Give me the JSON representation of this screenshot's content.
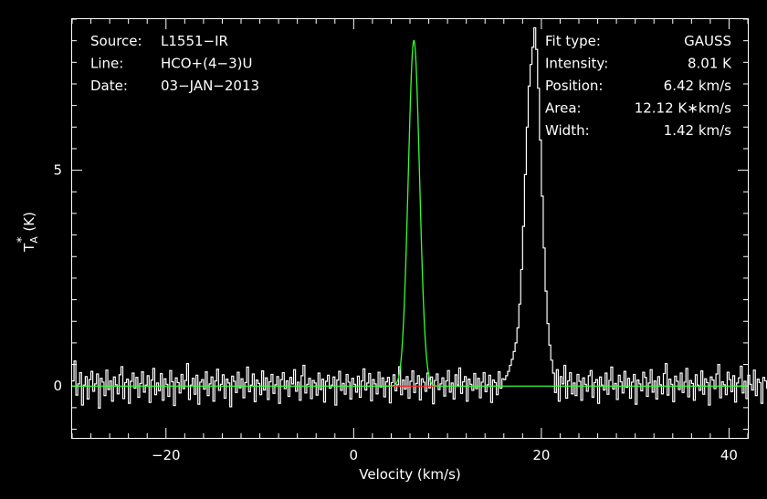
{
  "info_left": [
    {
      "label": "Source:",
      "value": "L1551−IR"
    },
    {
      "label": "Line:",
      "value": "HCO+(4−3)U"
    },
    {
      "label": "Date:",
      "value": "03−JAN−2013"
    }
  ],
  "info_right": [
    {
      "label": "Fit type:",
      "value": "GAUSS"
    },
    {
      "label": "Intensity:",
      "value": "8.01 K"
    },
    {
      "label": "Position:",
      "value": "6.42 km/s"
    },
    {
      "label": "Area:",
      "value": "12.12 K∗km/s"
    },
    {
      "label": "Width:",
      "value": "1.42 km/s"
    }
  ],
  "colors": {
    "background": "#000000",
    "spectrum": "#ffffff",
    "fit": "#33ff33",
    "baseline": "#ff2222",
    "axes": "#ffffff"
  },
  "chart_data": {
    "type": "line",
    "xlabel": "Velocity (km/s)",
    "ylabel": "T",
    "ylabel_sup": "*",
    "ylabel_sub": "A",
    "ylabel_unit": "(K)",
    "xlim": [
      -30,
      42
    ],
    "ylim": [
      -1.2,
      8.5
    ],
    "xticks": [
      -20,
      0,
      20,
      40
    ],
    "yticks": [
      0,
      5
    ],
    "xtick_labels": [
      "−20",
      "0",
      "20",
      "40"
    ],
    "ytick_labels": [
      "0",
      "5"
    ],
    "grid": false,
    "series": [
      {
        "role": "spectrum",
        "render": "steps",
        "x_start": -30,
        "x_step": 0.2,
        "values": [
          0.12,
          0.58,
          -0.21,
          0.05,
          0.31,
          -0.44,
          0.02,
          0.22,
          -0.3,
          0.15,
          0.34,
          -0.12,
          0.05,
          0.28,
          -0.51,
          0.18,
          0.09,
          -0.22,
          0.37,
          -0.08,
          0.12,
          -0.35,
          0.21,
          0.03,
          -0.18,
          0.26,
          0.45,
          -0.29,
          0.08,
          0.16,
          -0.4,
          0.11,
          0.3,
          -0.05,
          0.2,
          -0.26,
          0.06,
          0.33,
          -0.14,
          0.02,
          0.24,
          -0.38,
          0.14,
          0.41,
          -0.2,
          0.07,
          -0.11,
          0.29,
          -0.33,
          0.17,
          0.04,
          -0.24,
          0.36,
          0.1,
          -0.45,
          0.19,
          0.08,
          -0.16,
          0.27,
          -0.06,
          0.13,
          0.52,
          -0.31,
          0.02,
          0.18,
          -0.19,
          0.25,
          -0.42,
          0.09,
          0.15,
          -0.07,
          0.33,
          -0.22,
          0.05,
          0.21,
          -0.35,
          0.12,
          0.39,
          -0.1,
          0.04,
          0.26,
          -0.28,
          0.16,
          0.07,
          -0.48,
          0.23,
          0.11,
          -0.15,
          0.32,
          -0.04,
          0.17,
          -0.27,
          0.08,
          0.44,
          -0.13,
          0.02,
          0.28,
          -0.36,
          0.14,
          0.06,
          -0.2,
          0.35,
          -0.09,
          0.19,
          -0.31,
          0.1,
          0.27,
          -0.17,
          0.03,
          0.22,
          -0.4,
          0.15,
          0.31,
          -0.06,
          0.12,
          -0.24,
          0.2,
          0.05,
          0.38,
          -0.12,
          0.09,
          -0.33,
          0.24,
          0.48,
          -0.16,
          0.04,
          0.18,
          -0.29,
          0.13,
          0.07,
          -0.21,
          0.3,
          -0.08,
          0.16,
          -0.37,
          0.11,
          0.25,
          -0.05,
          0.02,
          0.21,
          -0.44,
          0.14,
          0.34,
          -0.1,
          0.06,
          -0.19,
          0.27,
          0.09,
          -0.3,
          0.18,
          0.04,
          -0.14,
          0.23,
          -0.26,
          0.12,
          0.4,
          -0.09,
          0.07,
          0.29,
          -0.34,
          0.15,
          0.05,
          -0.18,
          0.32,
          -0.02,
          0.19,
          -0.25,
          0.1,
          0.2,
          -0.39,
          0.08,
          0.26,
          -0.11,
          0.03,
          0.45,
          -0.2,
          0.14,
          -0.07,
          0.22,
          -0.28,
          0.11,
          0.35,
          -0.15,
          0.06,
          0.24,
          -0.32,
          0.17,
          0.09,
          -0.12,
          0.3,
          -0.04,
          0.21,
          -0.41,
          0.13,
          0.28,
          -0.08,
          0.05,
          0.19,
          -0.23,
          0.12,
          0.36,
          -0.14,
          0.07,
          -0.3,
          0.26,
          0.02,
          0.42,
          -0.17,
          0.1,
          0.22,
          -0.35,
          0.16,
          0.04,
          -0.1,
          0.29,
          -0.06,
          0.18,
          -0.27,
          0.09,
          0.31,
          -0.13,
          0.03,
          0.25,
          -0.38,
          0.14,
          0.08,
          -0.2,
          0.33,
          -0.05,
          0.17,
          0.15,
          0.24,
          0.34,
          0.48,
          0.62,
          0.8,
          1.0,
          1.35,
          1.9,
          2.7,
          3.7,
          4.9,
          6.0,
          6.95,
          7.45,
          7.85,
          8.3,
          7.8,
          6.9,
          5.7,
          4.4,
          3.2,
          2.2,
          1.45,
          0.95,
          0.6,
          0.3,
          -0.15,
          0.38,
          -0.35,
          0.22,
          0.05,
          0.48,
          -0.28,
          0.12,
          0.31,
          -0.18,
          0.07,
          -0.22,
          0.27,
          0.11,
          -0.33,
          0.19,
          0.04,
          -0.12,
          0.24,
          0.36,
          -0.26,
          0.08,
          0.15,
          -0.4,
          0.21,
          0.02,
          -0.09,
          0.3,
          -0.19,
          0.13,
          0.44,
          -0.07,
          0.06,
          -0.31,
          0.25,
          0.1,
          -0.16,
          0.34,
          -0.03,
          0.18,
          -0.28,
          0.09,
          0.27,
          -0.42,
          0.14,
          0.05,
          -0.11,
          0.32,
          0.2,
          -0.24,
          0.07,
          0.38,
          -0.14,
          0.12,
          -0.3,
          0.22,
          0.03,
          -0.18,
          0.29,
          0.52,
          -0.21,
          0.16,
          0.04,
          -0.36,
          0.23,
          0.11,
          -0.08,
          0.3,
          -0.15,
          0.09,
          0.41,
          -0.25,
          0.13,
          0.06,
          -0.33,
          0.26,
          0.02,
          -0.1,
          0.35,
          -0.19,
          0.17,
          0.08,
          -0.44,
          0.21,
          0.14,
          -0.06,
          0.28,
          0.5,
          -0.27,
          0.1,
          0.03,
          -0.2,
          0.32,
          0.15,
          -0.13,
          0.24,
          -0.37,
          0.07,
          0.19,
          0.46,
          -0.16,
          0.11,
          -0.29,
          0.25,
          0.04,
          -0.09,
          0.37,
          -0.22,
          0.16,
          0.08,
          -0.4,
          0.2,
          0.12,
          -0.05,
          0.31,
          -0.18,
          0.09,
          0.68,
          -0.3,
          0.14,
          0.05,
          -0.24,
          0.28,
          0.18,
          -0.12,
          0.33,
          -0.35,
          0.1,
          0.22,
          0.4,
          -0.2,
          0.07,
          -0.15,
          0.27,
          0.03,
          -0.28,
          0.17,
          0.36,
          -0.1,
          0.12,
          -0.42,
          0.24,
          0.06,
          0.49
        ]
      },
      {
        "role": "gaussian_fit",
        "render": "curve",
        "amplitude": 8.01,
        "center": 6.42,
        "fwhm": 1.42
      },
      {
        "role": "baseline",
        "render": "segment",
        "x_range": [
          3.6,
          9.2
        ],
        "value": 0
      }
    ]
  }
}
